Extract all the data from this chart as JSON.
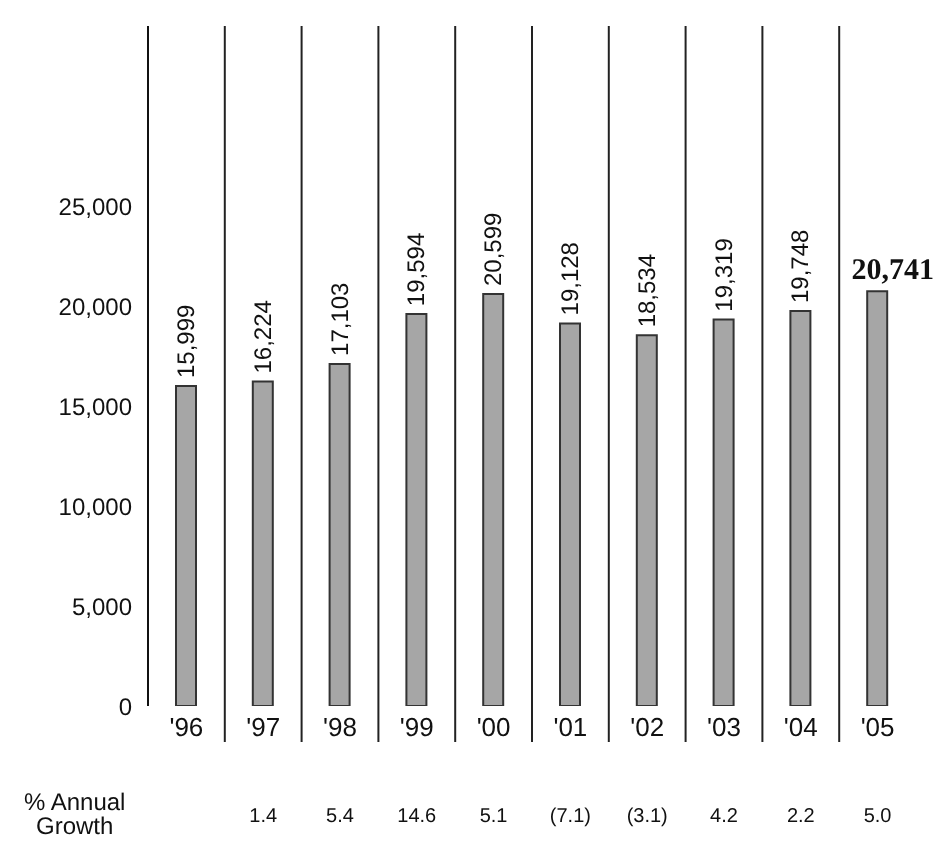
{
  "chart_data": {
    "type": "bar",
    "categories": [
      "'96",
      "'97",
      "'98",
      "'99",
      "'00",
      "'01",
      "'02",
      "'03",
      "'04",
      "'05"
    ],
    "values": [
      15999,
      16224,
      17103,
      19594,
      20599,
      19128,
      18534,
      19319,
      19748,
      20741
    ],
    "value_labels": [
      "15,999",
      "16,224",
      "17,103",
      "19,594",
      "20,599",
      "19,128",
      "18,534",
      "19,319",
      "19,748",
      "20,741"
    ],
    "color": "#a6a6a6",
    "ylim": [
      0,
      34000
    ],
    "yticks": [
      {
        "value": 0,
        "label": "0"
      },
      {
        "value": 5000,
        "label": "5,000"
      },
      {
        "value": 10000,
        "label": "10,000"
      },
      {
        "value": 15000,
        "label": "15,000"
      },
      {
        "value": 20000,
        "label": "20,000"
      },
      {
        "value": 25000,
        "label": "25,000"
      }
    ],
    "grid": "x",
    "annotations": [
      "% Annual Growth",
      "1.4",
      "5.4",
      "14.6",
      "5.1",
      "(7.1)",
      "(3.1)",
      "4.2",
      "2.2",
      "5.0"
    ]
  }
}
